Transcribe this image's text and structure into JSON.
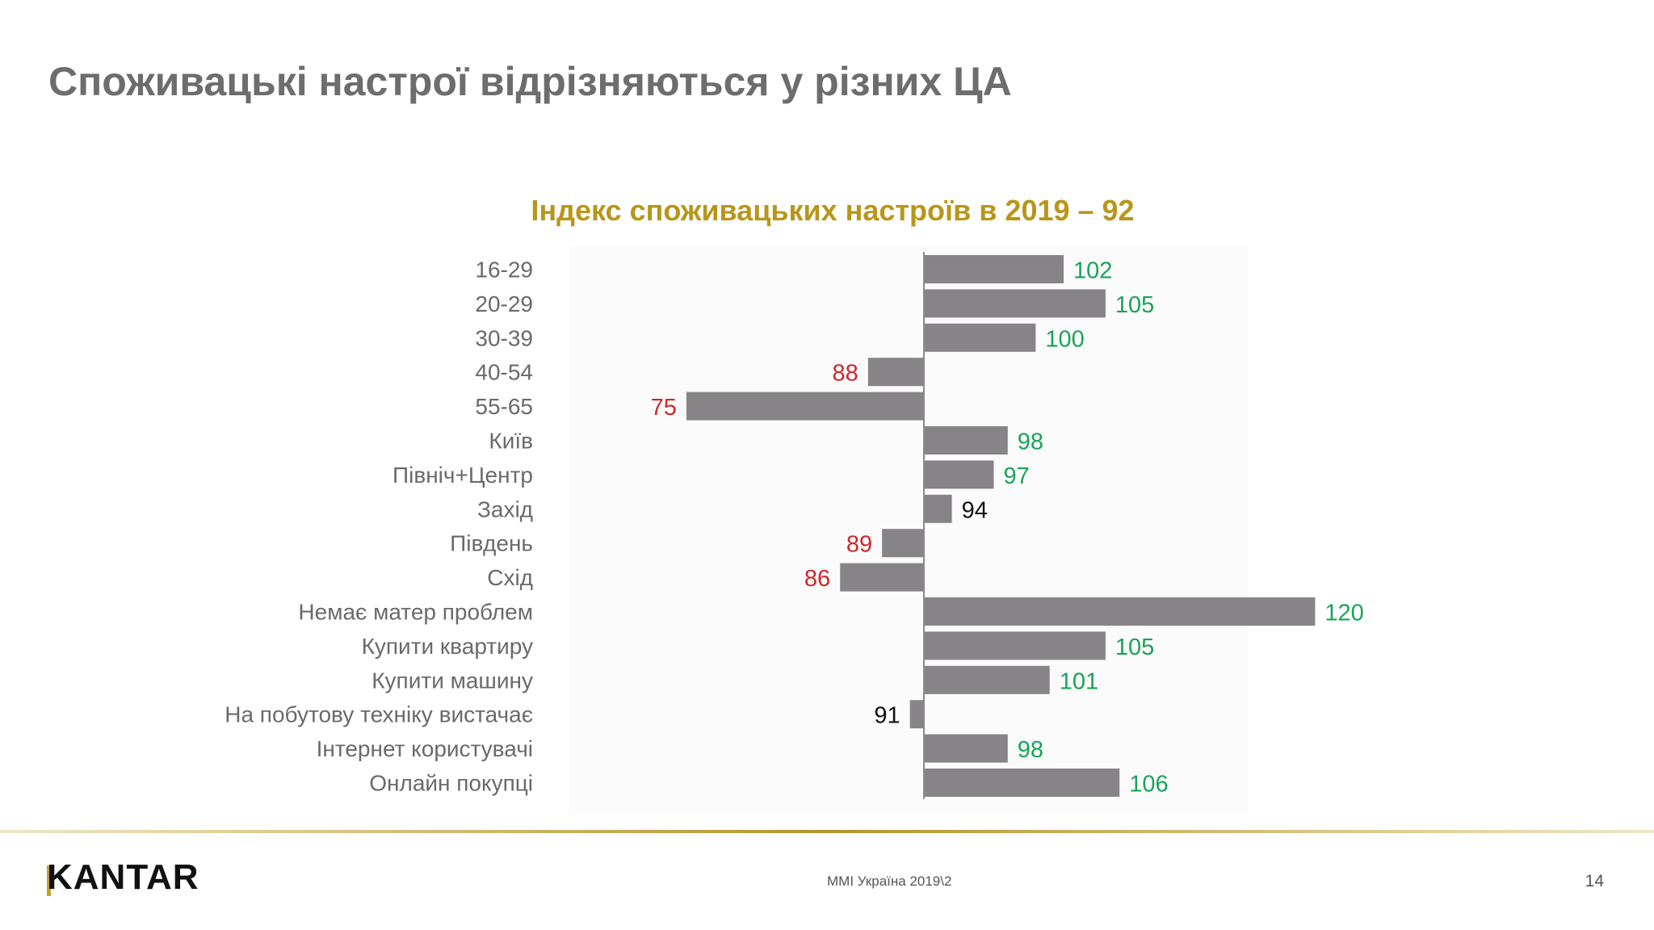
{
  "slide": {
    "title": "Споживацькі настрої відрізняються у різних ЦА",
    "brand": "KANTAR",
    "source": "MMI Україна 2019\\2",
    "page_number": "14"
  },
  "colors": {
    "bar": "#868486",
    "above": "#18a457",
    "below": "#d0262a",
    "neutral": "#111111",
    "title": "#b8961a"
  },
  "chart_data": {
    "type": "bar",
    "orientation": "horizontal",
    "title": "Індекс споживацьких настроїв в 2019 – 92",
    "baseline": 92,
    "xlim": [
      70,
      125
    ],
    "grid": false,
    "categories": [
      "16-29",
      "20-29",
      "30-39",
      "40-54",
      "55-65",
      "Київ",
      "Північ+Центр",
      "Захід",
      "Південь",
      "Схід",
      "Немає матер проблем",
      "Купити квартиру",
      "Купити машину",
      "На побутову техніку вистачає",
      "Інтернет користувачі",
      "Онлайн покупці"
    ],
    "values": [
      102,
      105,
      100,
      88,
      75,
      98,
      97,
      94,
      89,
      86,
      120,
      105,
      101,
      91,
      98,
      106
    ],
    "label_colors": [
      "above",
      "above",
      "above",
      "below",
      "below",
      "above",
      "above",
      "neutral",
      "below",
      "below",
      "above",
      "above",
      "above",
      "neutral",
      "above",
      "above"
    ]
  }
}
